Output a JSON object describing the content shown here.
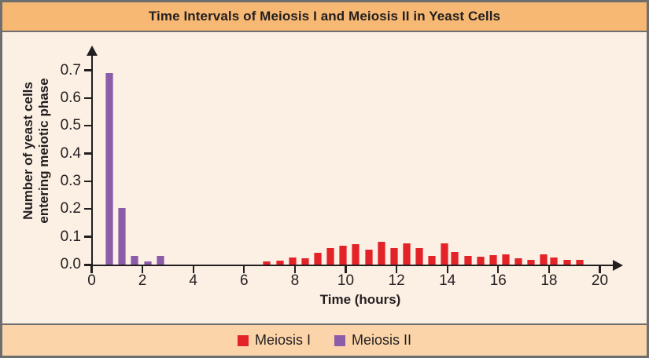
{
  "title_bar": {
    "text": "Time Intervals of Meiosis I and Meiosis II in Yeast Cells"
  },
  "colors": {
    "title_bar_bg": "#f6b873",
    "legend_band_bg": "#fbd5a9",
    "chart_bg": "#fcf0e4",
    "frame": "#6e6e6e",
    "axis": "#231f20",
    "meiosis_i_red": "#e32327",
    "meiosis_ii_purple": "#8b5ca8"
  },
  "legend": {
    "items": [
      {
        "label": "Meiosis I",
        "color": "#e32327"
      },
      {
        "label": "Meiosis II",
        "color": "#8b5ca8"
      }
    ]
  },
  "chart_data": {
    "type": "bar",
    "title": "Time Intervals of Meiosis I and Meiosis II in Yeast Cells",
    "xlabel": "Time (hours)",
    "ylabel_lines": [
      "Number of yeast cells",
      "entering meiotic phase"
    ],
    "xlim": [
      0,
      20.9
    ],
    "ylim": [
      0,
      0.77
    ],
    "x_ticks": [
      0,
      2,
      4,
      6,
      8,
      10,
      12,
      14,
      16,
      18,
      20
    ],
    "y_ticks": [
      0.0,
      0.1,
      0.2,
      0.3,
      0.4,
      0.5,
      0.6,
      0.7
    ],
    "grid": false,
    "legend_position": "bottom",
    "series": [
      {
        "name": "Meiosis I",
        "color": "#e32327",
        "x": [
          6.9,
          7.4,
          7.9,
          8.4,
          8.9,
          9.4,
          9.9,
          10.4,
          10.9,
          11.4,
          11.9,
          12.4,
          12.9,
          13.4,
          13.9,
          14.3,
          14.8,
          15.3,
          15.8,
          16.3,
          16.8,
          17.3,
          17.8,
          18.2,
          18.7,
          19.2
        ],
        "values": [
          0.01,
          0.013,
          0.025,
          0.022,
          0.042,
          0.06,
          0.068,
          0.073,
          0.055,
          0.082,
          0.06,
          0.075,
          0.06,
          0.03,
          0.075,
          0.045,
          0.03,
          0.027,
          0.035,
          0.037,
          0.023,
          0.017,
          0.038,
          0.025,
          0.017,
          0.018
        ]
      },
      {
        "name": "Meiosis II",
        "color": "#8b5ca8",
        "x": [
          0.7,
          1.2,
          1.7,
          2.2,
          2.7
        ],
        "values": [
          0.69,
          0.205,
          0.03,
          0.01,
          0.03
        ]
      }
    ]
  }
}
